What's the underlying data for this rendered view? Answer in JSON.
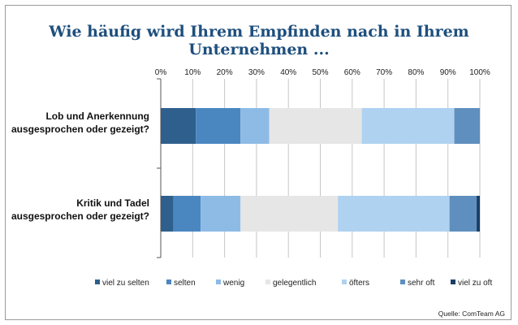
{
  "chart_data": {
    "type": "bar",
    "orientation": "horizontal-stacked-100",
    "title_lines": [
      "Wie häufig wird Ihrem Empfinden nach in Ihrem",
      "Unternehmen ..."
    ],
    "x_ticks": [
      "0%",
      "10%",
      "20%",
      "30%",
      "40%",
      "50%",
      "60%",
      "70%",
      "80%",
      "90%",
      "100%"
    ],
    "xlim": [
      0,
      100
    ],
    "categories": [
      [
        "Lob und Anerkennung",
        "ausgesprochen oder gezeigt?"
      ],
      [
        "Kritik und Tadel",
        "ausgesprochen oder gezeigt?"
      ]
    ],
    "series": [
      {
        "name": "viel zu selten",
        "color": "#2f5f8c",
        "values": [
          11,
          4
        ]
      },
      {
        "name": "selten",
        "color": "#4a87c1",
        "values": [
          14,
          8.5
        ]
      },
      {
        "name": "wenig",
        "color": "#8dbbe6",
        "values": [
          9,
          12.5
        ]
      },
      {
        "name": "gelegentlich",
        "color": "#e6e6e6",
        "values": [
          29,
          30.5
        ]
      },
      {
        "name": "öfters",
        "color": "#afd2f0",
        "values": [
          29,
          35
        ]
      },
      {
        "name": "sehr oft",
        "color": "#5f8fbe",
        "values": [
          8,
          8.5
        ]
      },
      {
        "name": "viel zu oft",
        "color": "#173e66",
        "values": [
          0,
          1
        ]
      }
    ],
    "legend_position": "bottom",
    "source": "Quelle: ComTeam AG"
  }
}
